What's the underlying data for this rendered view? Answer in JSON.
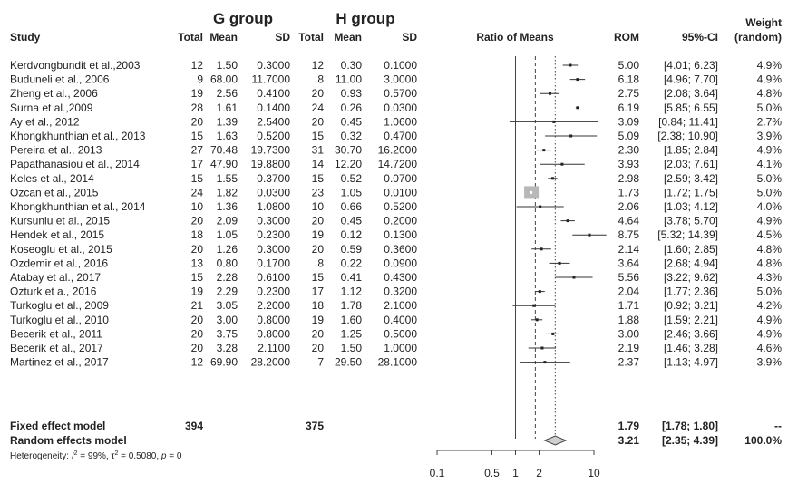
{
  "headers": {
    "g_group": "G group",
    "h_group": "H group",
    "study": "Study",
    "total": "Total",
    "mean": "Mean",
    "sd": "SD",
    "ratio_of_means": "Ratio of Means",
    "rom": "ROM",
    "ci": "95%-CI",
    "weight_line1": "Weight",
    "weight_line2": "(random)"
  },
  "summary": {
    "fixed": {
      "label": "Fixed effect model",
      "g_total": "394",
      "h_total": "375",
      "rom": "1.79",
      "ci": "[1.78; 1.80]",
      "weight": "--"
    },
    "random": {
      "label": "Random effects model",
      "rom": "3.21",
      "ci": "[2.35; 4.39]",
      "weight": "100.0%"
    },
    "heterogeneity": {
      "prefix": "Heterogeneity: ",
      "i2_label": "I",
      "i2_sup": "2",
      "i2_value": " = 99%, ",
      "tau_label": "τ",
      "tau_sup": "2",
      "tau_value": " = 0.5080, ",
      "p_label": "p",
      "p_value": " = 0"
    }
  },
  "chart_data": {
    "type": "forest",
    "title": "",
    "xlabel": "Ratio of Means",
    "x_scale": "log",
    "x_ticks": [
      {
        "value": 0.1,
        "label": "0.1"
      },
      {
        "value": 0.5,
        "label": "0.5"
      },
      {
        "value": 1,
        "label": "1"
      },
      {
        "value": 2,
        "label": "2"
      },
      {
        "value": 10,
        "label": "10"
      }
    ],
    "reference_line": 1,
    "fixed_line": 1.79,
    "random_line": 3.21,
    "studies": [
      {
        "study": "Kerdvongbundit et al.,2003",
        "g_total": "12",
        "g_mean": "1.50",
        "g_sd": "0.3000",
        "h_total": "12",
        "h_mean": "0.30",
        "h_sd": "0.1000",
        "rom": 5.0,
        "lower": 4.01,
        "upper": 6.23,
        "rom_text": "5.00",
        "ci_text": "[4.01; 6.23]",
        "weight": "4.9%"
      },
      {
        "study": "Buduneli et al., 2006",
        "g_total": "9",
        "g_mean": "68.00",
        "g_sd": "11.7000",
        "h_total": "8",
        "h_mean": "11.00",
        "h_sd": "3.0000",
        "rom": 6.18,
        "lower": 4.96,
        "upper": 7.7,
        "rom_text": "6.18",
        "ci_text": "[4.96; 7.70]",
        "weight": "4.9%"
      },
      {
        "study": "Zheng et al., 2006",
        "g_total": "19",
        "g_mean": "2.56",
        "g_sd": "0.4100",
        "h_total": "20",
        "h_mean": "0.93",
        "h_sd": "0.5700",
        "rom": 2.75,
        "lower": 2.08,
        "upper": 3.64,
        "rom_text": "2.75",
        "ci_text": "[2.08; 3.64]",
        "weight": "4.8%"
      },
      {
        "study": "Surna et al.,2009",
        "g_total": "28",
        "g_mean": "1.61",
        "g_sd": "0.1400",
        "h_total": "24",
        "h_mean": "0.26",
        "h_sd": "0.0300",
        "rom": 6.19,
        "lower": 5.85,
        "upper": 6.55,
        "rom_text": "6.19",
        "ci_text": "[5.85; 6.55]",
        "weight": "5.0%"
      },
      {
        "study": "Ay et al., 2012",
        "g_total": "20",
        "g_mean": "1.39",
        "g_sd": "2.5400",
        "h_total": "20",
        "h_mean": "0.45",
        "h_sd": "1.0600",
        "rom": 3.09,
        "lower": 0.84,
        "upper": 11.41,
        "rom_text": "3.09",
        "ci_text": "[0.84; 11.41]",
        "weight": "2.7%"
      },
      {
        "study": "Khongkhunthian et al., 2013",
        "g_total": "15",
        "g_mean": "1.63",
        "g_sd": "0.5200",
        "h_total": "15",
        "h_mean": "0.32",
        "h_sd": "0.4700",
        "rom": 5.09,
        "lower": 2.38,
        "upper": 10.9,
        "rom_text": "5.09",
        "ci_text": "[2.38; 10.90]",
        "weight": "3.9%"
      },
      {
        "study": "Pereira et al., 2013",
        "g_total": "27",
        "g_mean": "70.48",
        "g_sd": "19.7300",
        "h_total": "31",
        "h_mean": "30.70",
        "h_sd": "16.2000",
        "rom": 2.3,
        "lower": 1.85,
        "upper": 2.84,
        "rom_text": "2.30",
        "ci_text": "[1.85; 2.84]",
        "weight": "4.9%"
      },
      {
        "study": "Papathanasiou et al., 2014",
        "g_total": "17",
        "g_mean": "47.90",
        "g_sd": "19.8800",
        "h_total": "14",
        "h_mean": "12.20",
        "h_sd": "14.7200",
        "rom": 3.93,
        "lower": 2.03,
        "upper": 7.61,
        "rom_text": "3.93",
        "ci_text": "[2.03; 7.61]",
        "weight": "4.1%"
      },
      {
        "study": "Keles et al., 2014",
        "g_total": "15",
        "g_mean": "1.55",
        "g_sd": "0.3700",
        "h_total": "15",
        "h_mean": "0.52",
        "h_sd": "0.0700",
        "rom": 2.98,
        "lower": 2.59,
        "upper": 3.42,
        "rom_text": "2.98",
        "ci_text": "[2.59; 3.42]",
        "weight": "5.0%"
      },
      {
        "study": "Ozcan et al., 2015",
        "g_total": "24",
        "g_mean": "1.82",
        "g_sd": "0.0300",
        "h_total": "23",
        "h_mean": "1.05",
        "h_sd": "0.0100",
        "rom": 1.73,
        "lower": 1.72,
        "upper": 1.75,
        "rom_text": "1.73",
        "ci_text": "[1.72; 1.75]",
        "weight": "5.0%"
      },
      {
        "study": "Khongkhunthian et al., 2014",
        "g_total": "10",
        "g_mean": "1.36",
        "g_sd": "1.0800",
        "h_total": "10",
        "h_mean": "0.66",
        "h_sd": "0.5200",
        "rom": 2.06,
        "lower": 1.03,
        "upper": 4.12,
        "rom_text": "2.06",
        "ci_text": "[1.03; 4.12]",
        "weight": "4.0%"
      },
      {
        "study": "Kursunlu et al., 2015",
        "g_total": "20",
        "g_mean": "2.09",
        "g_sd": "0.3000",
        "h_total": "20",
        "h_mean": "0.45",
        "h_sd": "0.2000",
        "rom": 4.64,
        "lower": 3.78,
        "upper": 5.7,
        "rom_text": "4.64",
        "ci_text": "[3.78; 5.70]",
        "weight": "4.9%"
      },
      {
        "study": "Hendek  et al., 2015",
        "g_total": "18",
        "g_mean": "1.05",
        "g_sd": "0.2300",
        "h_total": "19",
        "h_mean": "0.12",
        "h_sd": "0.1300",
        "rom": 8.75,
        "lower": 5.32,
        "upper": 14.39,
        "rom_text": "8.75",
        "ci_text": "[5.32; 14.39]",
        "weight": "4.5%"
      },
      {
        "study": "Koseoglu et al., 2015",
        "g_total": "20",
        "g_mean": "1.26",
        "g_sd": "0.3000",
        "h_total": "20",
        "h_mean": "0.59",
        "h_sd": "0.3600",
        "rom": 2.14,
        "lower": 1.6,
        "upper": 2.85,
        "rom_text": "2.14",
        "ci_text": "[1.60; 2.85]",
        "weight": "4.8%"
      },
      {
        "study": "Ozdemir et al., 2016",
        "g_total": "13",
        "g_mean": "0.80",
        "g_sd": "0.1700",
        "h_total": "8",
        "h_mean": "0.22",
        "h_sd": "0.0900",
        "rom": 3.64,
        "lower": 2.68,
        "upper": 4.94,
        "rom_text": "3.64",
        "ci_text": "[2.68; 4.94]",
        "weight": "4.8%"
      },
      {
        "study": "Atabay et al., 2017",
        "g_total": "15",
        "g_mean": "2.28",
        "g_sd": "0.6100",
        "h_total": "15",
        "h_mean": "0.41",
        "h_sd": "0.4300",
        "rom": 5.56,
        "lower": 3.22,
        "upper": 9.62,
        "rom_text": "5.56",
        "ci_text": "[3.22; 9.62]",
        "weight": "4.3%"
      },
      {
        "study": "Ozturk et a., 2016",
        "g_total": "19",
        "g_mean": "2.29",
        "g_sd": "0.2300",
        "h_total": "17",
        "h_mean": "1.12",
        "h_sd": "0.3200",
        "rom": 2.04,
        "lower": 1.77,
        "upper": 2.36,
        "rom_text": "2.04",
        "ci_text": "[1.77; 2.36]",
        "weight": "5.0%"
      },
      {
        "study": "Turkoglu et al., 2009",
        "g_total": "21",
        "g_mean": "3.05",
        "g_sd": "2.2000",
        "h_total": "18",
        "h_mean": "1.78",
        "h_sd": "2.1000",
        "rom": 1.71,
        "lower": 0.92,
        "upper": 3.21,
        "rom_text": "1.71",
        "ci_text": "[0.92; 3.21]",
        "weight": "4.2%"
      },
      {
        "study": "Turkoglu et al., 2010",
        "g_total": "20",
        "g_mean": "3.00",
        "g_sd": "0.8000",
        "h_total": "19",
        "h_mean": "1.60",
        "h_sd": "0.4000",
        "rom": 1.88,
        "lower": 1.59,
        "upper": 2.21,
        "rom_text": "1.88",
        "ci_text": "[1.59; 2.21]",
        "weight": "4.9%"
      },
      {
        "study": "Becerik et al., 2011",
        "g_total": "20",
        "g_mean": "3.75",
        "g_sd": "0.8000",
        "h_total": "20",
        "h_mean": "1.25",
        "h_sd": "0.5000",
        "rom": 3.0,
        "lower": 2.46,
        "upper": 3.66,
        "rom_text": "3.00",
        "ci_text": "[2.46; 3.66]",
        "weight": "4.9%"
      },
      {
        "study": "Becerik et al., 2017",
        "g_total": "20",
        "g_mean": "3.28",
        "g_sd": "2.1100",
        "h_total": "20",
        "h_mean": "1.50",
        "h_sd": "1.0000",
        "rom": 2.19,
        "lower": 1.46,
        "upper": 3.28,
        "rom_text": "2.19",
        "ci_text": "[1.46; 3.28]",
        "weight": "4.6%"
      },
      {
        "study": "Martinez et al., 2017",
        "g_total": "12",
        "g_mean": "69.90",
        "g_sd": "28.2000",
        "h_total": "7",
        "h_mean": "29.50",
        "h_sd": "28.1000",
        "rom": 2.37,
        "lower": 1.13,
        "upper": 4.97,
        "rom_text": "2.37",
        "ci_text": "[1.13; 4.97]",
        "weight": "3.9%"
      }
    ],
    "highlighted_study": "Ozcan et al., 2015",
    "random_effect_diamond": {
      "estimate": 3.21,
      "lower": 2.35,
      "upper": 4.39
    }
  }
}
